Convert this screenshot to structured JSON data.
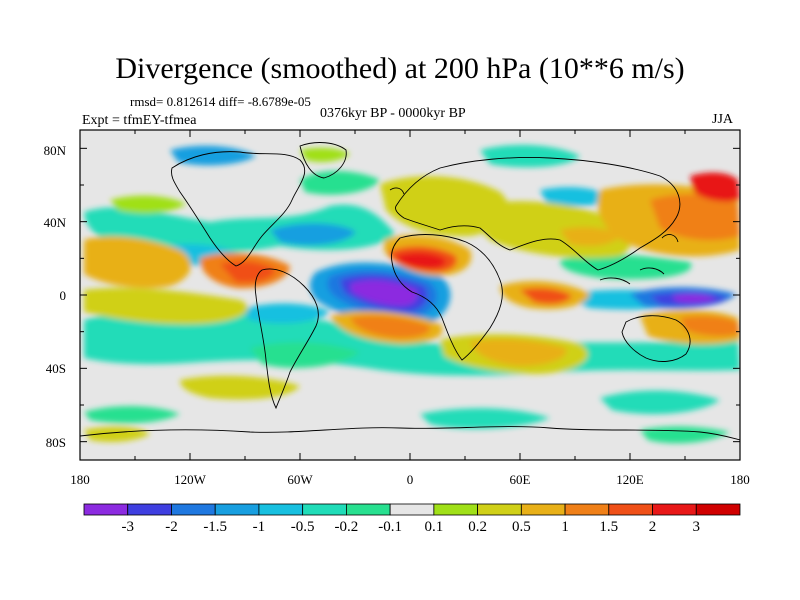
{
  "title": "Divergence (smoothed) at 200 hPa (10**6 m/s)",
  "stats": "rmsd= 0.812614 diff= -8.6789e-05",
  "expt": "Expt = tfmEY-tfmea",
  "period": "0376kyr BP - 0000kyr BP",
  "season": "JJA",
  "lat_labels": [
    "80N",
    "40N",
    "0",
    "40S",
    "80S"
  ],
  "lon_labels": [
    "180",
    "120W",
    "60W",
    "0",
    "60E",
    "120E",
    "180"
  ],
  "colorbar": {
    "labels": [
      "-3",
      "-2",
      "-1.5",
      "-1",
      "-0.5",
      "-0.2",
      "-0.1",
      "0.1",
      "0.2",
      "0.5",
      "1",
      "1.5",
      "2",
      "3"
    ],
    "colors": [
      "#8c2be0",
      "#3f3fe0",
      "#1f78e0",
      "#189fe0",
      "#18c0e0",
      "#20dcb8",
      "#28e090",
      "#e6e6e6",
      "#a0e018",
      "#d0d018",
      "#e8b018",
      "#f08018",
      "#f05018",
      "#e81818",
      "#d00000"
    ]
  },
  "map": {
    "background_color": "#e6e6e6",
    "coastline_color": "#000000"
  }
}
